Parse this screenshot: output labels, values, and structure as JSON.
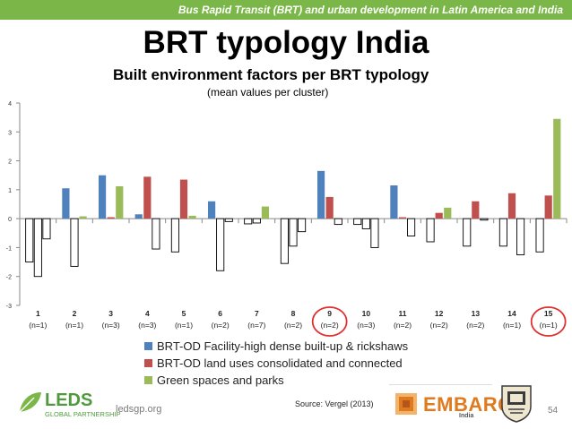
{
  "header": {
    "banner": "Bus Rapid Transit (BRT) and urban development in Latin America and India"
  },
  "slide": {
    "title": "BRT typology India",
    "page_number": "54"
  },
  "chart_data": {
    "type": "bar",
    "title": "Built environment factors per BRT typology",
    "subtitle": "(mean values per cluster)",
    "xlabel": "",
    "ylabel": "",
    "ylim": [
      -3,
      4
    ],
    "yticks": [
      "4",
      "3",
      "2",
      "1",
      "0",
      "-1",
      "-2",
      "-3"
    ],
    "grid": false,
    "categories": [
      "1",
      "2",
      "3",
      "4",
      "5",
      "6",
      "7",
      "8",
      "9",
      "10",
      "11",
      "12",
      "13",
      "14",
      "15"
    ],
    "category_counts": [
      "(n=1)",
      "(n=1)",
      "(n=3)",
      "(n=3)",
      "(n=1)",
      "(n=2)",
      "(n=7)",
      "(n=2)",
      "(n=2)",
      "(n=3)",
      "(n=2)",
      "(n=2)",
      "(n=2)",
      "(n=1)",
      "(n=1)"
    ],
    "highlighted_categories": [
      "9",
      "15"
    ],
    "series": [
      {
        "name": "BRT-OD Facility-high dense built-up & rickshaws",
        "color": "#4f81bd",
        "values": [
          -1.5,
          1.05,
          1.5,
          0.15,
          -1.15,
          0.6,
          -0.18,
          -1.55,
          1.65,
          -0.2,
          1.15,
          -0.8,
          -0.95,
          -0.95,
          -1.15
        ]
      },
      {
        "name": "BRT-OD land uses consolidated and connected",
        "color": "#c0504d",
        "values": [
          -2.0,
          -1.65,
          0.05,
          1.45,
          1.35,
          -1.8,
          -0.15,
          -0.95,
          0.75,
          -0.35,
          0.05,
          0.2,
          0.6,
          0.88,
          0.8
        ]
      },
      {
        "name": "Green spaces and parks",
        "color": "#9bbb59",
        "values": [
          -0.7,
          0.08,
          1.12,
          -1.05,
          0.1,
          -0.1,
          0.42,
          -0.45,
          -0.2,
          -1.0,
          -0.6,
          0.38,
          -0.05,
          -1.25,
          3.45
        ]
      }
    ]
  },
  "footer": {
    "partner_name": "LEDS",
    "partner_sub": "GLOBAL PARTNERSHIP",
    "website": "ledsgp.org",
    "source": "Source: Vergel (2013)",
    "embarq_name": "EMBARQ",
    "embarq_sub": "India"
  }
}
